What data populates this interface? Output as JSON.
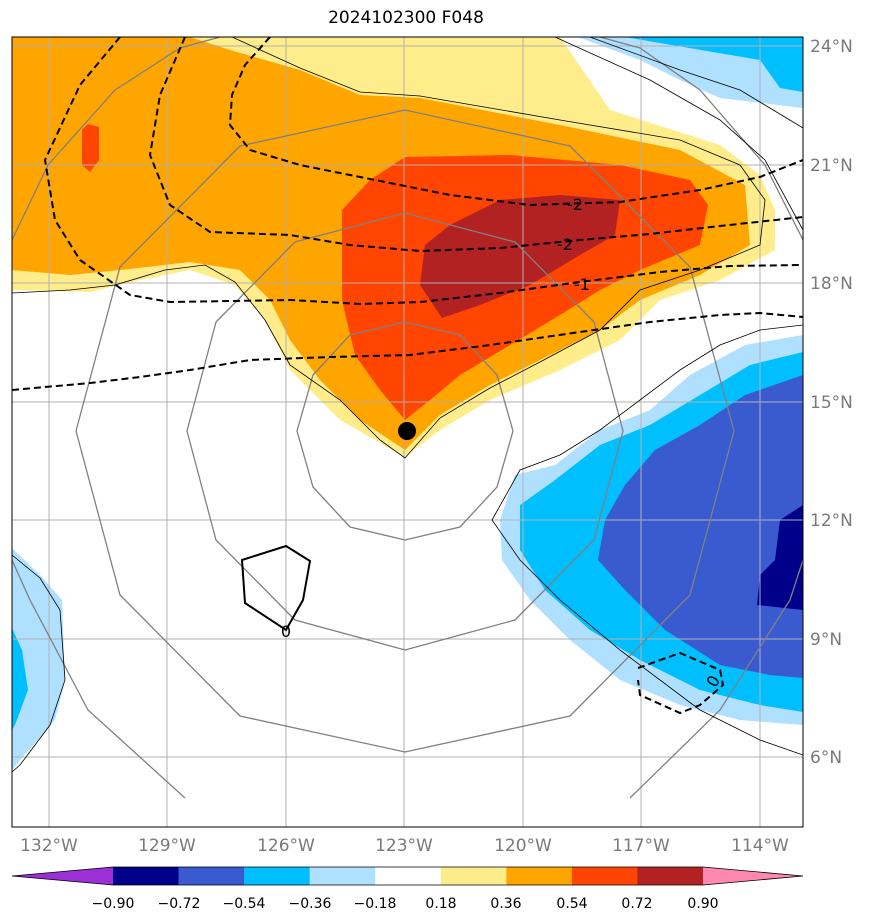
{
  "map": {
    "title": "2024102300 F048",
    "lat_labels": [
      "24°N",
      "21°N",
      "18°N",
      "15°N",
      "12°N",
      "9°N",
      "6°N"
    ],
    "lon_labels": [
      "132°W",
      "129°W",
      "126°W",
      "123°W",
      "120°W",
      "117°W",
      "114°W"
    ],
    "contour_labels": [
      "-2",
      "-2",
      "-1",
      "0",
      "0"
    ],
    "storm_center": {
      "lat": 14.3,
      "lon": -123.0
    },
    "colorbar": {
      "ticks": [
        "−0.90",
        "−0.72",
        "−0.54",
        "−0.36",
        "−0.18",
        "0.18",
        "0.36",
        "0.54",
        "0.72",
        "0.90"
      ],
      "colors": [
        "#9b30d6",
        "#00008b",
        "#3a5bcf",
        "#00bfff",
        "#b0e0ff",
        "#ffffff",
        "#ffec8b",
        "#ffa500",
        "#ff4500",
        "#b22222",
        "#ff88b0"
      ]
    }
  }
}
